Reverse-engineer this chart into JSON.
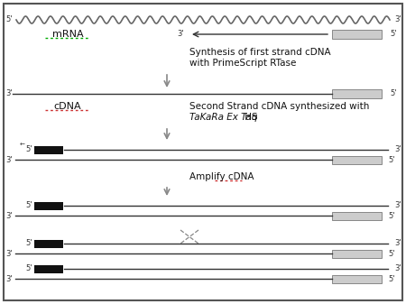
{
  "bg_color": "#ffffff",
  "border_color": "#555555",
  "line_color": "#333333",
  "arrow_color": "#888888",
  "black_box_color": "#111111",
  "gray_box_color": "#cccccc",
  "text_color": "#111111",
  "red_text_color": "#cc0000",
  "green_underline_color": "#00aa00",
  "wave_color": "#555555",
  "mrna_label": "mRNA",
  "cdna_label": "cDNA",
  "step1_text_line1": "Synthesis of first strand cDNA",
  "step1_text_line2": "with PrimeScript RTase",
  "step2_text_line1": "Second Strand cDNA synthesized with",
  "step2_text_line2_plain": " HS",
  "step2_text_line2_italic": "TaKaRa Ex Taq",
  "step3_text": "Amplify cDNA",
  "fig_width": 4.5,
  "fig_height": 3.37,
  "dpi": 100
}
